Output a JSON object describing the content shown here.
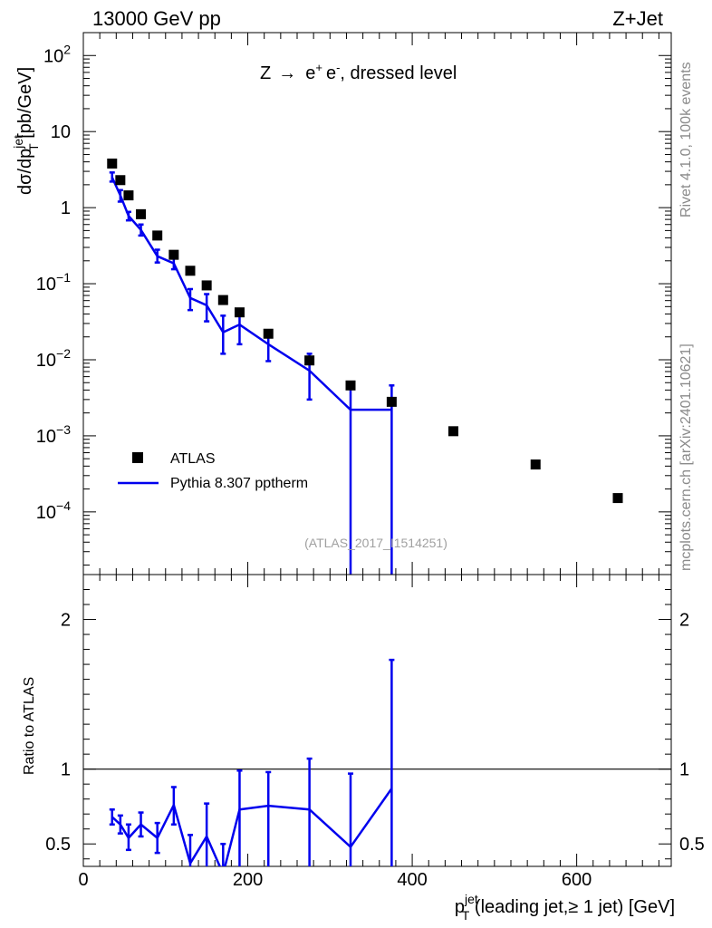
{
  "header": {
    "left": "13000 GeV pp",
    "right": "Z+Jet"
  },
  "side_labels": {
    "rivet": "Rivet 4.1.0,  100k events",
    "mcplots": "mcplots.cern.ch [arXiv:2401.10621]"
  },
  "colors": {
    "mc": "#0000ee",
    "data": "#000000",
    "reference_line": "#000000"
  },
  "chart_data": [
    {
      "type": "scatter",
      "panel": "main",
      "title": "Z → e⁺ e⁻, dressed level",
      "title_parts": {
        "z": "Z",
        "arrow": "→",
        "e1": "e",
        "sup1": "+",
        "e2": "e",
        "sup2": "-",
        "rest": ", dressed level"
      },
      "ylabel_parts": {
        "a": "dσ/dp",
        "sup": "jet",
        "sub": "T",
        "b": " [pb/GeV]"
      },
      "yscale": "log",
      "ylim": [
        1.5e-05,
        200
      ],
      "xlim": [
        0,
        715
      ],
      "ytick_labels": [
        {
          "value": 100,
          "mant": "10",
          "exp": "2"
        },
        {
          "value": 10,
          "mant": "10",
          "exp": ""
        },
        {
          "value": 1,
          "mant": "1",
          "exp": ""
        },
        {
          "value": 0.1,
          "mant": "10",
          "exp": "−1"
        },
        {
          "value": 0.01,
          "mant": "10",
          "exp": "−2"
        },
        {
          "value": 0.001,
          "mant": "10",
          "exp": "−3"
        },
        {
          "value": 0.0001,
          "mant": "10",
          "exp": "−4"
        }
      ],
      "legend": {
        "position": "bottom-left",
        "entries": [
          "ATLAS",
          "Pythia 8.307 pptherm"
        ]
      },
      "reference_tag": "(ATLAS_2017_I1514251)",
      "series": [
        {
          "name": "ATLAS",
          "style": "markers",
          "x": [
            35,
            45,
            55,
            70,
            90,
            110,
            130,
            150,
            170,
            190,
            225,
            275,
            325,
            375,
            450,
            550,
            650
          ],
          "y": [
            3.8,
            2.3,
            1.45,
            0.82,
            0.43,
            0.24,
            0.148,
            0.095,
            0.061,
            0.042,
            0.022,
            0.0098,
            0.0046,
            0.0028,
            0.00115,
            0.00042,
            0.000152
          ]
        },
        {
          "name": "Pythia 8.307 pptherm",
          "style": "line",
          "x": [
            35,
            45,
            55,
            70,
            90,
            110,
            130,
            150,
            170,
            190,
            225,
            275,
            325,
            375
          ],
          "y": [
            2.5,
            1.45,
            0.78,
            0.51,
            0.23,
            0.185,
            0.065,
            0.052,
            0.023,
            0.029,
            0.016,
            0.0072,
            0.0022,
            0.0022
          ],
          "err_lo": [
            2.2,
            1.2,
            0.68,
            0.43,
            0.19,
            0.155,
            0.045,
            0.032,
            0.012,
            0.016,
            0.0096,
            0.003,
            1e-06,
            1e-06
          ],
          "err_hi": [
            2.9,
            1.7,
            0.88,
            0.6,
            0.28,
            0.23,
            0.085,
            0.073,
            0.038,
            0.046,
            0.024,
            0.012,
            0.0048,
            0.0046
          ]
        }
      ]
    },
    {
      "type": "line",
      "panel": "ratio",
      "ylabel": "Ratio to ATLAS",
      "xlabel_parts": {
        "a": "p",
        "sup": "jet",
        "sub": "T",
        "b": " (leading jet,≥ 1 jet) [GeV]"
      },
      "ylim": [
        0.35,
        2.3
      ],
      "xlim": [
        0,
        715
      ],
      "ytick_labels": [
        {
          "value": 2,
          "label": "2"
        },
        {
          "value": 1,
          "label": "1"
        },
        {
          "value": 0.5,
          "label": "0.5"
        }
      ],
      "xtick_labels": [
        {
          "value": 0,
          "label": "0"
        },
        {
          "value": 200,
          "label": "200"
        },
        {
          "value": 400,
          "label": "400"
        },
        {
          "value": 600,
          "label": "600"
        }
      ],
      "reference_value": 1,
      "series": [
        {
          "name": "Pythia 8.307 pptherm",
          "x": [
            35,
            45,
            55,
            70,
            90,
            110,
            130,
            150,
            170,
            190,
            225,
            275,
            325,
            375
          ],
          "y": [
            0.68,
            0.63,
            0.54,
            0.63,
            0.54,
            0.76,
            0.37,
            0.55,
            0.3,
            0.73,
            0.755,
            0.73,
            0.48,
            0.87
          ],
          "err_lo": [
            0.63,
            0.57,
            0.46,
            0.55,
            0.44,
            0.63,
            0.2,
            0.35,
            0.1,
            0.2,
            0.23,
            0.1,
            0.1,
            0.1
          ],
          "err_hi": [
            0.73,
            0.69,
            0.63,
            0.71,
            0.64,
            0.88,
            0.56,
            0.77,
            0.5,
            0.99,
            0.98,
            1.07,
            0.97,
            1.73
          ]
        }
      ]
    }
  ]
}
